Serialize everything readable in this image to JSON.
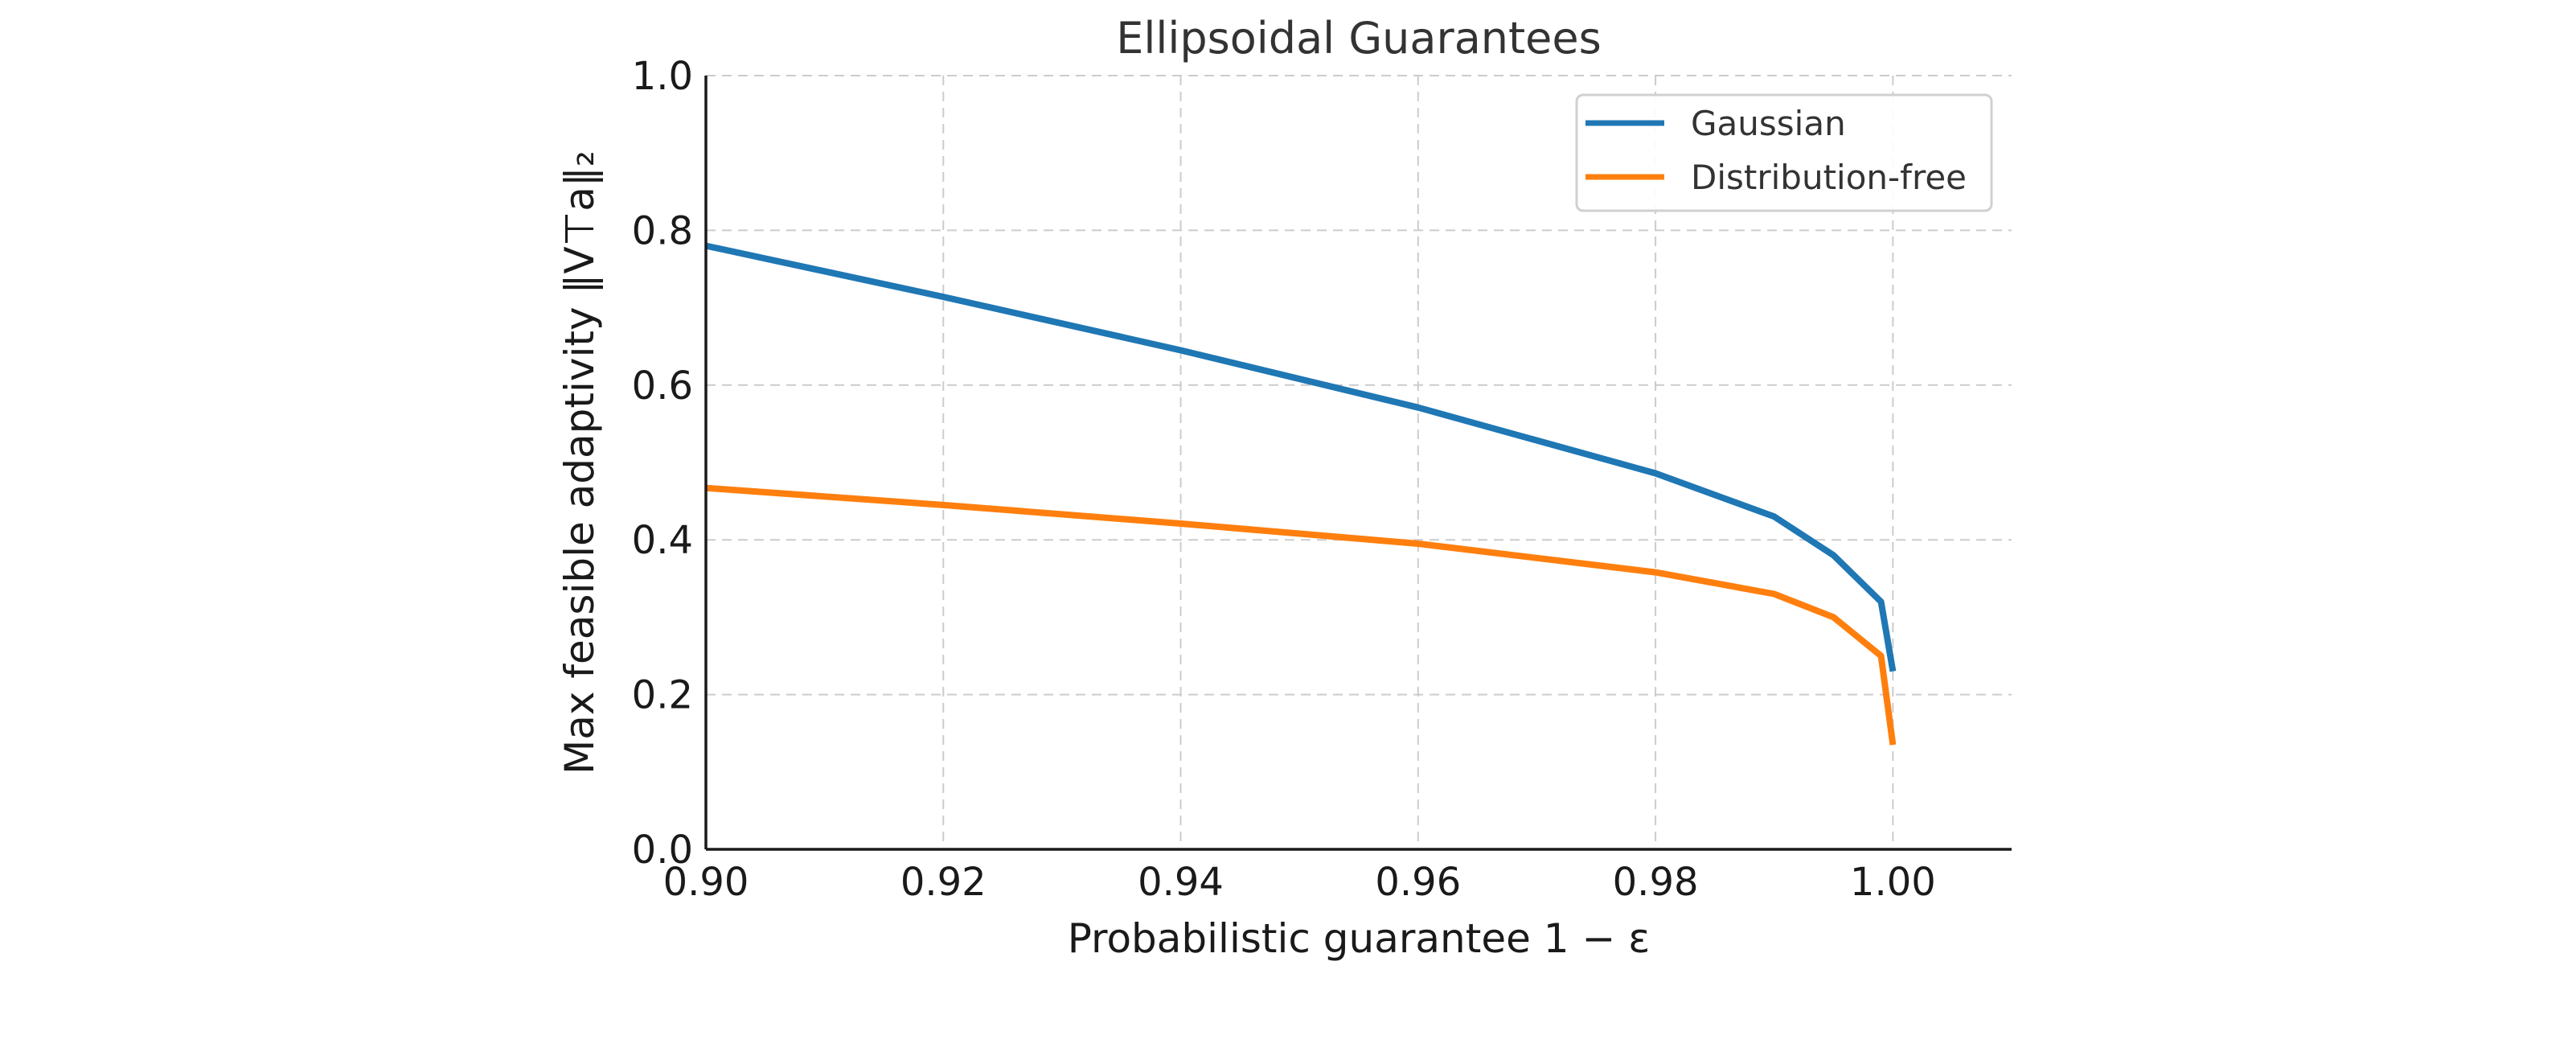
{
  "chart_data": {
    "type": "line",
    "title": "Ellipsoidal Guarantees",
    "xlabel": "Probabilistic guarantee 1 − ε",
    "ylabel": "Max feasible adaptivity ‖V⊤a‖₂",
    "xlim": [
      0.9,
      1.01
    ],
    "ylim": [
      0.0,
      1.0
    ],
    "xticks": [
      "0.90",
      "0.92",
      "0.94",
      "0.96",
      "0.98",
      "1.00"
    ],
    "yticks": [
      "0.0",
      "0.2",
      "0.4",
      "0.6",
      "0.8",
      "1.0"
    ],
    "grid": true,
    "legend_position": "top-right",
    "series": [
      {
        "name": "Gaussian",
        "color": "#1f77b4",
        "points": [
          [
            0.9,
            0.78
          ],
          [
            0.92,
            0.714
          ],
          [
            0.94,
            0.645
          ],
          [
            0.96,
            0.571
          ],
          [
            0.98,
            0.486
          ],
          [
            0.99,
            0.43
          ],
          [
            0.995,
            0.38
          ],
          [
            0.999,
            0.32
          ],
          [
            1.0,
            0.23
          ]
        ]
      },
      {
        "name": "Distribution-free",
        "color": "#ff7f0e",
        "points": [
          [
            0.9,
            0.467
          ],
          [
            0.92,
            0.445
          ],
          [
            0.94,
            0.421
          ],
          [
            0.96,
            0.395
          ],
          [
            0.98,
            0.358
          ],
          [
            0.99,
            0.33
          ],
          [
            0.995,
            0.3
          ],
          [
            0.999,
            0.25
          ],
          [
            1.0,
            0.135
          ]
        ]
      }
    ]
  }
}
